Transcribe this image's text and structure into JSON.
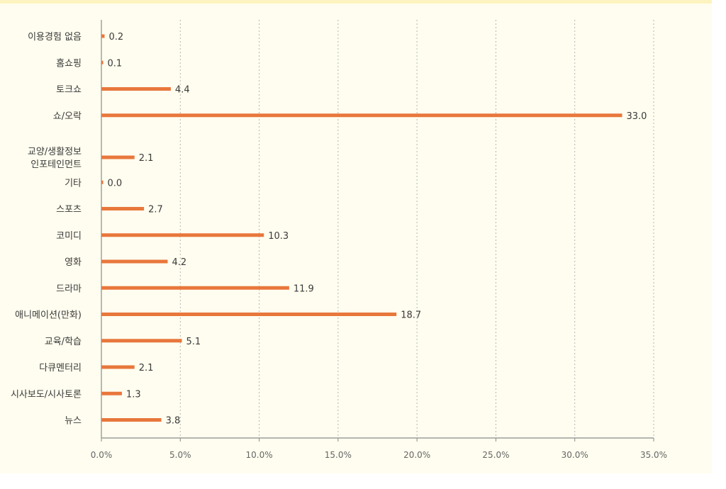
{
  "chart_data": {
    "type": "bar",
    "orientation": "horizontal",
    "categories": [
      "이용경험 없음",
      "홈쇼핑",
      "토크쇼",
      "쇼/오락",
      "교양/생활정보\n인포테인먼트",
      "기타",
      "스포츠",
      "코미디",
      "영화",
      "드라마",
      "애니메이션(만화)",
      "교육/학습",
      "다큐멘터리",
      "시사보도/시사토론",
      "뉴스"
    ],
    "values": [
      0.2,
      0.1,
      4.4,
      33.0,
      2.1,
      0.0,
      2.7,
      10.3,
      4.2,
      11.9,
      18.7,
      5.1,
      2.1,
      1.3,
      3.8
    ],
    "value_labels": [
      "0.2",
      "0.1",
      "4.4",
      "33.0",
      "2.1",
      "0.0",
      "2.7",
      "10.3",
      "4.2",
      "11.9",
      "18.7",
      "5.1",
      "2.1",
      "1.3",
      "3.8"
    ],
    "xlim": [
      0,
      35
    ],
    "xticks": [
      0,
      5,
      10,
      15,
      20,
      25,
      30,
      35
    ],
    "xtick_labels": [
      "0.0%",
      "5.0%",
      "10.0%",
      "15.0%",
      "20.0%",
      "25.0%",
      "30.0%",
      "35.0%"
    ],
    "xgrid": "dotted vertical",
    "legend": "none",
    "colors": {
      "bar": "#e8773c",
      "grid": "#b5b5b5",
      "axis": "#8a8a8a",
      "background": "#fffdef"
    }
  }
}
